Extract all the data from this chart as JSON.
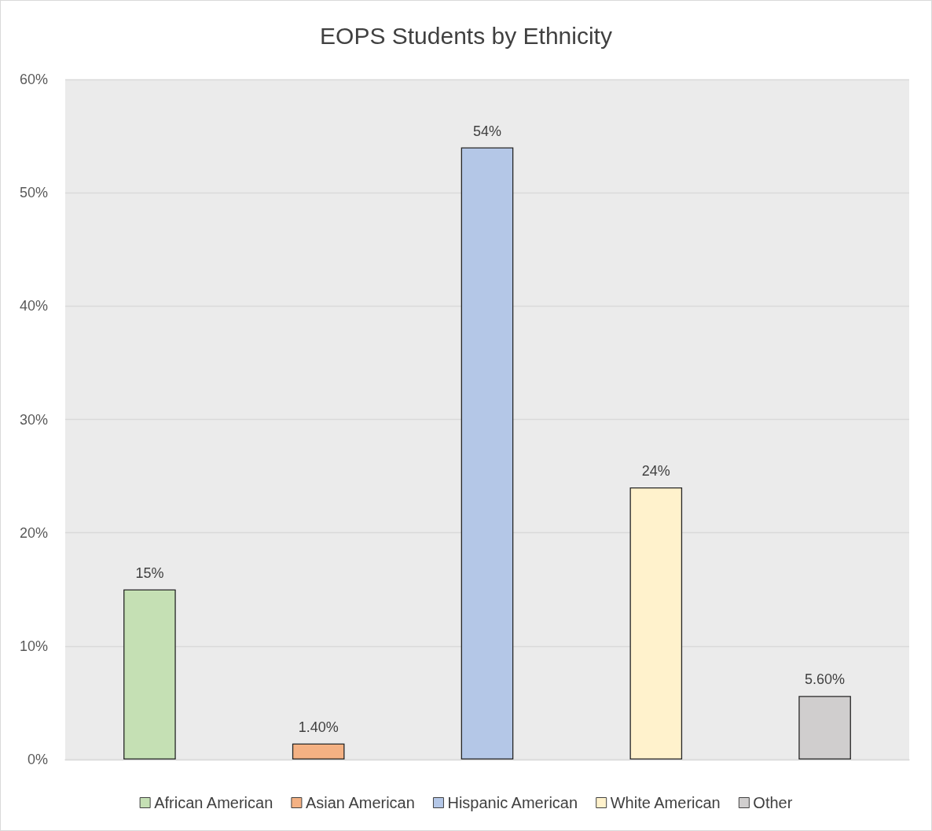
{
  "chart_data": {
    "type": "bar",
    "title": "EOPS Students by Ethnicity",
    "categories": [
      null,
      null,
      null,
      null,
      null
    ],
    "series": [
      {
        "name": "African American",
        "color": "#c5e0b4",
        "values": [
          15,
          null,
          null,
          null,
          null
        ],
        "value_labels": [
          "15%",
          null,
          null,
          null,
          null
        ]
      },
      {
        "name": "Asian American",
        "color": "#f4b183",
        "values": [
          null,
          1.4,
          null,
          null,
          null
        ],
        "value_labels": [
          null,
          "1.40%",
          null,
          null,
          null
        ]
      },
      {
        "name": "Hispanic American",
        "color": "#b4c7e7",
        "values": [
          null,
          null,
          54,
          null,
          null
        ],
        "value_labels": [
          null,
          null,
          "54%",
          null,
          null
        ]
      },
      {
        "name": "White American",
        "color": "#fff2cc",
        "values": [
          null,
          null,
          null,
          24,
          null
        ],
        "value_labels": [
          null,
          null,
          null,
          "24%",
          null
        ]
      },
      {
        "name": "Other",
        "color": "#d0cece",
        "values": [
          null,
          null,
          null,
          null,
          5.6
        ],
        "value_labels": [
          null,
          null,
          null,
          null,
          "5.60%"
        ]
      }
    ],
    "ylim": [
      0,
      60
    ],
    "yticks": [
      {
        "value": 0,
        "label": "0%"
      },
      {
        "value": 10,
        "label": "10%"
      },
      {
        "value": 20,
        "label": "20%"
      },
      {
        "value": 30,
        "label": "30%"
      },
      {
        "value": 40,
        "label": "40%"
      },
      {
        "value": 50,
        "label": "50%"
      },
      {
        "value": 60,
        "label": "60%"
      }
    ],
    "grid": "y",
    "legend": "bottom"
  }
}
